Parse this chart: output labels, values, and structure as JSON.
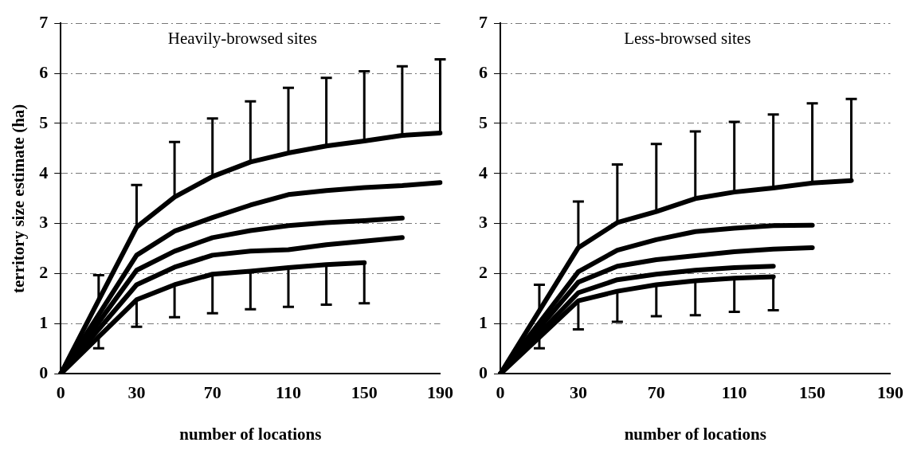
{
  "chart_data": [
    {
      "type": "line",
      "title": "Heavily-browsed sites",
      "xlabel": "number of locations",
      "ylabel": "territory size estimate (ha)",
      "categories": [
        "0",
        null,
        "30",
        null,
        "70",
        null,
        "110",
        null,
        "150",
        null,
        "190"
      ],
      "ylim": [
        0,
        7
      ],
      "yticks": [
        0,
        1,
        2,
        3,
        4,
        5,
        6,
        7
      ],
      "grid": "y",
      "legend": false,
      "series": [
        {
          "color": "#000000",
          "values": [
            0,
            1.47,
            2.93,
            3.53,
            3.94,
            4.23,
            4.41,
            4.55,
            4.65,
            4.76,
            4.81
          ],
          "errors": [
            null,
            [
              1.47,
              1.97
            ],
            [
              2.93,
              3.77
            ],
            [
              3.53,
              4.63
            ],
            [
              3.94,
              5.1
            ],
            [
              4.23,
              5.44
            ],
            [
              4.41,
              5.71
            ],
            [
              4.55,
              5.91
            ],
            [
              4.65,
              6.04
            ],
            [
              4.76,
              6.14
            ],
            [
              4.81,
              6.28
            ]
          ]
        },
        {
          "color": "#000000",
          "values": [
            0,
            1.18,
            2.37,
            2.85,
            3.12,
            3.37,
            3.58,
            3.66,
            3.72,
            3.76,
            3.82
          ]
        },
        {
          "color": "#000000",
          "values": [
            0,
            1.03,
            2.07,
            2.45,
            2.72,
            2.86,
            2.96,
            3.02,
            3.06,
            3.11,
            null
          ]
        },
        {
          "color": "#000000",
          "values": [
            0,
            0.89,
            1.78,
            2.13,
            2.37,
            2.45,
            2.48,
            2.58,
            2.65,
            2.72,
            null
          ]
        },
        {
          "color": "#000000",
          "values": [
            0,
            0.74,
            1.48,
            1.78,
            1.99,
            2.05,
            2.12,
            2.18,
            2.22,
            null,
            null
          ],
          "errors": [
            null,
            [
              0.51,
              0.74
            ],
            [
              0.94,
              1.48
            ],
            [
              1.13,
              1.78
            ],
            [
              1.21,
              1.99
            ],
            [
              1.29,
              2.05
            ],
            [
              1.34,
              2.12
            ],
            [
              1.38,
              2.18
            ],
            [
              1.41,
              2.22
            ],
            null,
            null
          ]
        }
      ]
    },
    {
      "type": "line",
      "title": "Less-browsed sites",
      "xlabel": "number of locations",
      "categories": [
        "0",
        null,
        "30",
        null,
        "70",
        null,
        "110",
        null,
        "150",
        null,
        "190"
      ],
      "ylim": [
        0,
        7
      ],
      "yticks": [
        0,
        1,
        2,
        3,
        4,
        5,
        6,
        7
      ],
      "grid": "y",
      "legend": false,
      "series": [
        {
          "color": "#000000",
          "values": [
            0,
            1.26,
            2.52,
            3.02,
            3.24,
            3.5,
            3.63,
            3.71,
            3.81,
            3.86,
            null
          ],
          "errors": [
            null,
            [
              1.26,
              1.78
            ],
            [
              2.52,
              3.44
            ],
            [
              3.02,
              4.18
            ],
            [
              3.24,
              4.59
            ],
            [
              3.5,
              4.84
            ],
            [
              3.63,
              5.03
            ],
            [
              3.71,
              5.18
            ],
            [
              3.81,
              5.4
            ],
            [
              3.86,
              5.49
            ],
            null
          ]
        },
        {
          "color": "#000000",
          "values": [
            0,
            1.02,
            2.04,
            2.47,
            2.68,
            2.84,
            2.91,
            2.96,
            2.97,
            null,
            null
          ]
        },
        {
          "color": "#000000",
          "values": [
            0,
            0.92,
            1.83,
            2.15,
            2.28,
            2.36,
            2.44,
            2.49,
            2.52,
            null,
            null
          ]
        },
        {
          "color": "#000000",
          "values": [
            0,
            0.81,
            1.62,
            1.88,
            1.99,
            2.07,
            2.12,
            2.15,
            null,
            null,
            null
          ]
        },
        {
          "color": "#000000",
          "values": [
            0,
            0.73,
            1.46,
            1.65,
            1.78,
            1.86,
            1.91,
            1.94,
            null,
            null,
            null
          ],
          "errors": [
            null,
            [
              0.51,
              0.73
            ],
            [
              0.89,
              1.46
            ],
            [
              1.04,
              1.65
            ],
            [
              1.15,
              1.78
            ],
            [
              1.17,
              1.86
            ],
            [
              1.24,
              1.91
            ],
            [
              1.27,
              1.94
            ],
            null,
            null,
            null
          ]
        }
      ]
    }
  ]
}
